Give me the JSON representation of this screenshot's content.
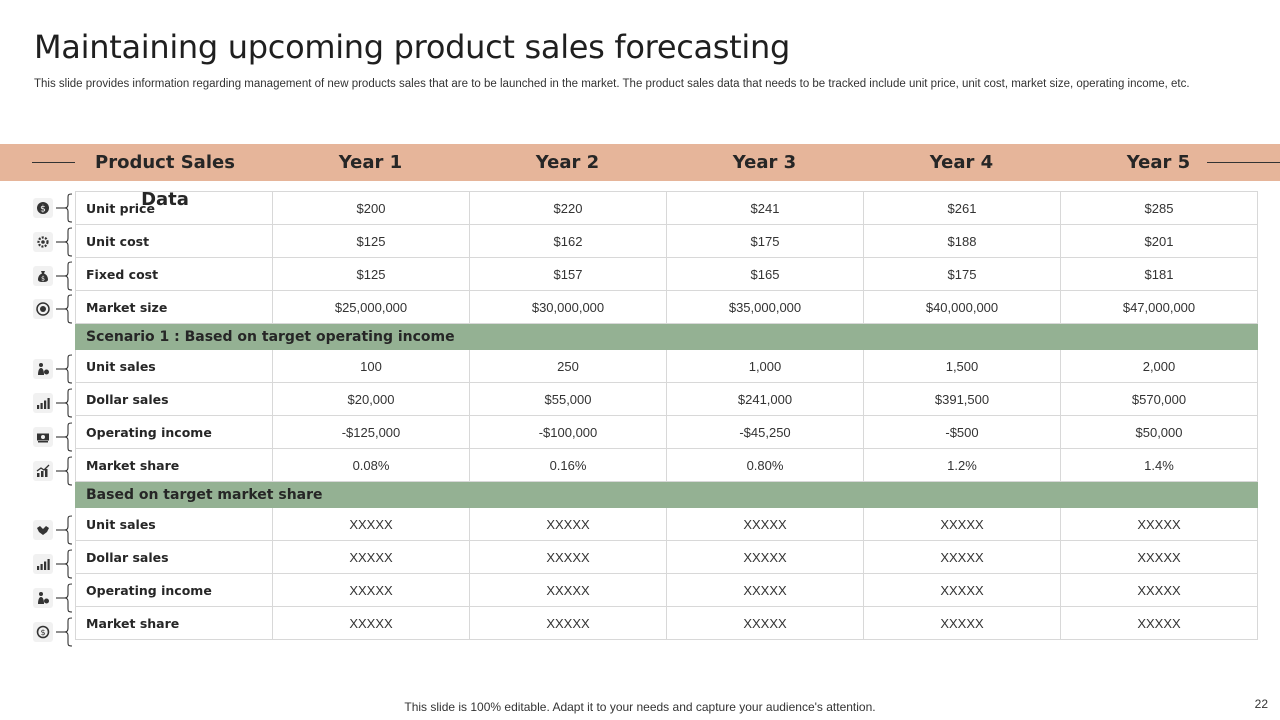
{
  "title": "Maintaining upcoming product sales forecasting",
  "subtitle": "This slide provides information regarding management of new products sales that are to be launched in the market. The product sales data that needs to be tracked include unit price, unit cost, market size, operating income, etc.",
  "header": [
    "Product Sales Data",
    "Year 1",
    "Year 2",
    "Year 3",
    "Year 4",
    "Year 5"
  ],
  "rows": [
    {
      "type": "data",
      "icon": "dollar-coin-icon",
      "label": "Unit price",
      "values": [
        "$200",
        "$220",
        "$241",
        "$261",
        "$285"
      ]
    },
    {
      "type": "data",
      "icon": "gear-icon",
      "label": "Unit cost",
      "values": [
        "$125",
        "$162",
        "$175",
        "$188",
        "$201"
      ]
    },
    {
      "type": "data",
      "icon": "money-bag-icon",
      "label": "Fixed cost",
      "values": [
        "$125",
        "$157",
        "$165",
        "$175",
        "$181"
      ]
    },
    {
      "type": "data",
      "icon": "target-icon",
      "label": "Market size",
      "values": [
        "$25,000,000",
        "$30,000,000",
        "$35,000,000",
        "$40,000,000",
        "$47,000,000"
      ]
    },
    {
      "type": "band",
      "label": "Scenario 1 : Based on target operating income"
    },
    {
      "type": "data",
      "icon": "person-money-icon",
      "label": "Unit sales",
      "values": [
        "100",
        "250",
        "1,000",
        "1,500",
        "2,000"
      ]
    },
    {
      "type": "data",
      "icon": "bar-chart-icon",
      "label": "Dollar sales",
      "values": [
        "$20,000",
        "$55,000",
        "$241,000",
        "$391,500",
        "$570,000"
      ]
    },
    {
      "type": "data",
      "icon": "banknote-icon",
      "label": "Operating income",
      "values": [
        "-$125,000",
        "-$100,000",
        "-$45,250",
        "-$500",
        "$50,000"
      ]
    },
    {
      "type": "data",
      "icon": "growth-chart-icon",
      "label": "Market share",
      "values": [
        "0.08%",
        "0.16%",
        "0.80%",
        "1.2%",
        "1.4%"
      ]
    },
    {
      "type": "band",
      "label": "Based on target market share"
    },
    {
      "type": "data",
      "icon": "handshake-icon",
      "label": "Unit sales",
      "values": [
        "XXXXX",
        "XXXXX",
        "XXXXX",
        "XXXXX",
        "XXXXX"
      ]
    },
    {
      "type": "data",
      "icon": "bar-chart-icon",
      "label": "Dollar sales",
      "values": [
        "XXXXX",
        "XXXXX",
        "XXXXX",
        "XXXXX",
        "XXXXX"
      ]
    },
    {
      "type": "data",
      "icon": "person-money-icon",
      "label": "Operating income",
      "values": [
        "XXXXX",
        "XXXXX",
        "XXXXX",
        "XXXXX",
        "XXXXX"
      ]
    },
    {
      "type": "data",
      "icon": "dollar-cycle-icon",
      "label": "Market share",
      "values": [
        "XXXXX",
        "XXXXX",
        "XXXXX",
        "XXXXX",
        "XXXXX"
      ]
    }
  ],
  "footer": "This slide is 100% editable. Adapt it to your needs and capture your audience's attention.",
  "page_number": "22"
}
